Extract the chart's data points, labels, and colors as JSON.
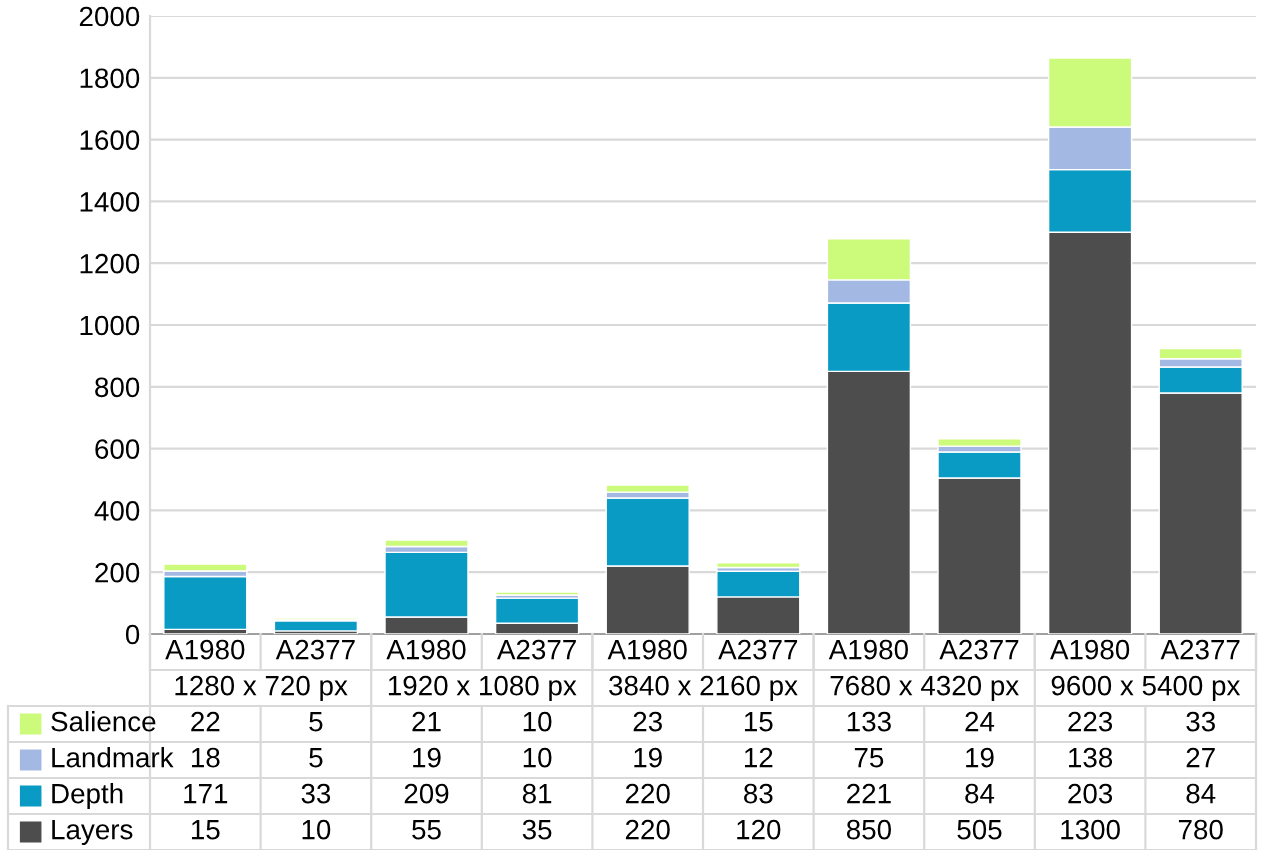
{
  "chart_data": {
    "type": "bar",
    "stacked": true,
    "categories": [
      "A1980",
      "A2377",
      "A1980",
      "A2377",
      "A1980",
      "A2377",
      "A1980",
      "A2377",
      "A1980",
      "A2377"
    ],
    "annotations": [
      "1280 x 720 px",
      "1920 x 1080 px",
      "3840 x 2160 px",
      "7680 x 4320 px",
      "9600 x 5400 px"
    ],
    "series": [
      {
        "name": "Layers",
        "color": "#4d4d4d",
        "values": [
          15,
          10,
          55,
          35,
          220,
          120,
          850,
          505,
          1300,
          780
        ]
      },
      {
        "name": "Depth",
        "color": "#0a9bc4",
        "values": [
          171,
          33,
          209,
          81,
          220,
          83,
          221,
          84,
          203,
          84
        ]
      },
      {
        "name": "Landmark",
        "color": "#a3b8e2",
        "values": [
          18,
          5,
          19,
          10,
          19,
          12,
          75,
          19,
          138,
          27
        ]
      },
      {
        "name": "Salience",
        "color": "#ccfa7a",
        "values": [
          22,
          5,
          21,
          10,
          23,
          15,
          133,
          24,
          223,
          33
        ]
      }
    ],
    "ylim": [
      0,
      2000
    ],
    "yticks": [
      0,
      200,
      400,
      600,
      800,
      1000,
      1200,
      1400,
      1600,
      1800,
      2000
    ],
    "grid": "y",
    "data_labels": true,
    "legend": "bottom"
  }
}
